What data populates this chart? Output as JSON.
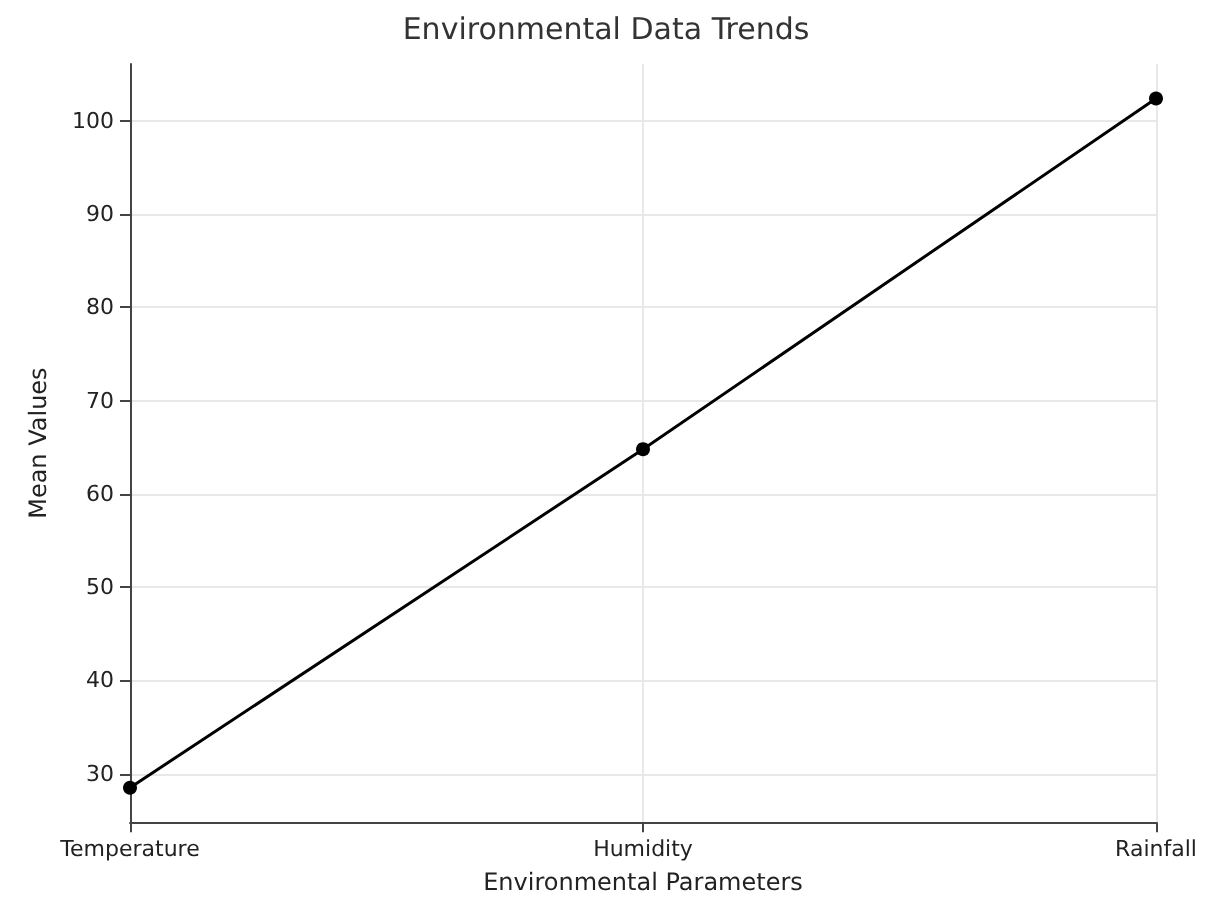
{
  "chart_data": {
    "type": "line",
    "title": "Environmental Data Trends",
    "xlabel": "Environmental Parameters",
    "ylabel": "Mean Values",
    "categories": [
      "Temperature",
      "Humidity",
      "Rainfall"
    ],
    "series": [
      {
        "color": "#000000",
        "values": [
          28.5,
          64.8,
          102.4
        ]
      }
    ],
    "ylim": [
      24.8,
      106.1
    ],
    "yticks": [
      30,
      40,
      50,
      60,
      70,
      80,
      90,
      100
    ],
    "grid": true,
    "marker": "circle",
    "line_style": "solid"
  }
}
